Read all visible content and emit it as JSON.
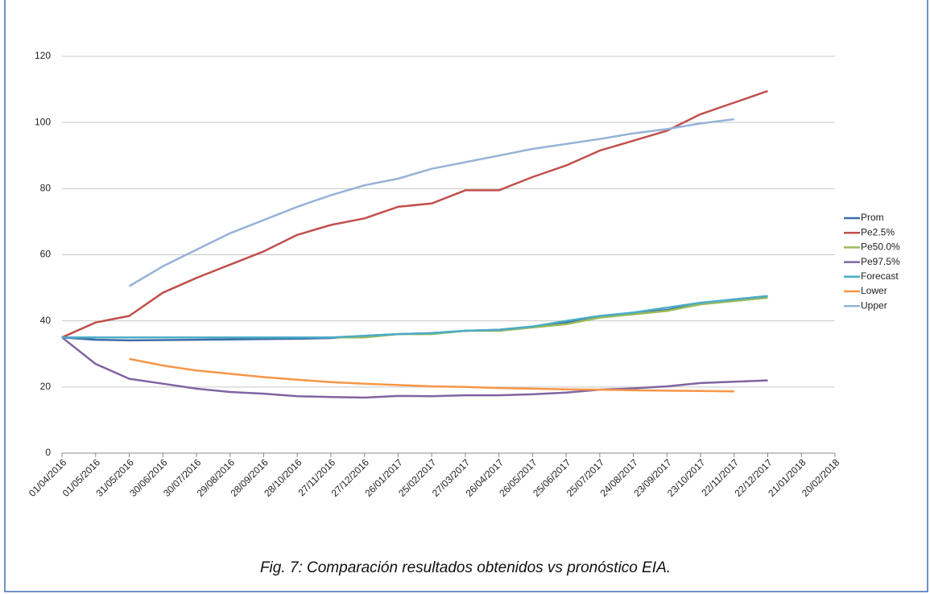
{
  "chart_data": {
    "type": "line",
    "caption": "Fig. 7: Comparación resultados obtenidos vs pronóstico EIA.",
    "x": [
      "01/04/2016",
      "01/05/2016",
      "31/05/2016",
      "30/06/2016",
      "30/07/2016",
      "29/08/2016",
      "28/09/2016",
      "28/10/2016",
      "27/11/2016",
      "27/12/2016",
      "26/01/2017",
      "25/02/2017",
      "27/03/2017",
      "26/04/2017",
      "26/05/2017",
      "25/06/2017",
      "25/07/2017",
      "24/08/2017",
      "23/09/2017",
      "23/10/2017",
      "22/11/2017",
      "22/12/2017"
    ],
    "xlim": [
      "01/04/2016",
      "20/02/2018"
    ],
    "xticks": [
      "01/04/2016",
      "01/05/2016",
      "31/05/2016",
      "30/06/2016",
      "30/07/2016",
      "29/08/2016",
      "28/09/2016",
      "28/10/2016",
      "27/11/2016",
      "27/12/2016",
      "26/01/2017",
      "25/02/2017",
      "27/03/2017",
      "26/04/2017",
      "26/05/2017",
      "25/06/2017",
      "25/07/2017",
      "24/08/2017",
      "23/09/2017",
      "23/10/2017",
      "22/11/2017",
      "22/12/2017",
      "21/01/2018",
      "20/02/2018"
    ],
    "ylim": [
      0,
      120
    ],
    "yticks": [
      0,
      20,
      40,
      60,
      80,
      100,
      120
    ],
    "grid": true,
    "legend": "right",
    "series": [
      {
        "name": "Prom",
        "color": "#3c6ea8",
        "values": [
          35,
          34.3,
          34.1,
          34.2,
          34.3,
          34.4,
          34.5,
          34.6,
          34.8,
          35.5,
          36,
          36.3,
          37,
          37.3,
          38.3,
          39.5,
          41.3,
          42.3,
          43.3,
          45.2,
          46.5,
          47.5
        ]
      },
      {
        "name": "Pe2.5%",
        "color": "#c0504d",
        "values": [
          35,
          39.5,
          41.5,
          48.5,
          53,
          57,
          61,
          66,
          69,
          71,
          74.5,
          75.5,
          79.5,
          79.5,
          83.5,
          87,
          91.5,
          94.5,
          97.5,
          102.5,
          106,
          109.5
        ]
      },
      {
        "name": "Pe50.0%",
        "color": "#9bbb59",
        "values": [
          35,
          35,
          35,
          35,
          35,
          35,
          35,
          35,
          35,
          35,
          36,
          36,
          37,
          37,
          38,
          39,
          41,
          42,
          43,
          45,
          46,
          47
        ]
      },
      {
        "name": "Pe97.5%",
        "color": "#8064a2",
        "values": [
          35,
          27,
          22.5,
          21,
          19.5,
          18.5,
          18,
          17.2,
          17,
          16.8,
          17.3,
          17.2,
          17.5,
          17.5,
          17.8,
          18.3,
          19.2,
          19.6,
          20.2,
          21.2,
          21.6,
          22
        ]
      },
      {
        "name": "Forecast",
        "color": "#4bacc6",
        "values": [
          35,
          35,
          35,
          35,
          35,
          35,
          35,
          35,
          35,
          35.5,
          36,
          36.3,
          37,
          37.3,
          38.3,
          40,
          41.5,
          42.5,
          44,
          45.5,
          46.5,
          47.5
        ]
      },
      {
        "name": "Lower",
        "color": "#f79646",
        "values": [
          null,
          null,
          28.5,
          26.5,
          25,
          24,
          23,
          22.2,
          21.5,
          21,
          20.6,
          20.2,
          20,
          19.7,
          19.5,
          19.3,
          19.2,
          19,
          18.9,
          18.8,
          18.7,
          null
        ]
      },
      {
        "name": "Upper",
        "color": "#95b3d7",
        "values": [
          null,
          null,
          50.5,
          56.5,
          61.5,
          66.5,
          70.5,
          74.5,
          78,
          81,
          83,
          86,
          88,
          90,
          92,
          93.5,
          95,
          96.7,
          98,
          99.7,
          101,
          null
        ]
      }
    ]
  }
}
